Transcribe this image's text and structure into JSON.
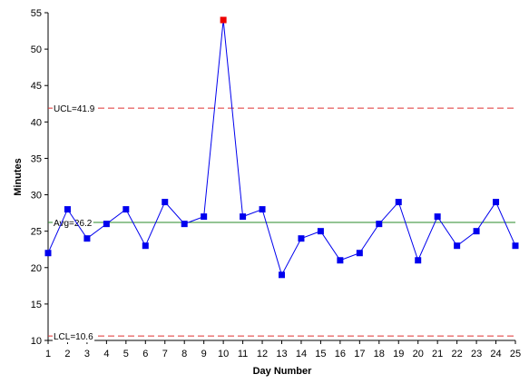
{
  "chart_data": {
    "type": "line",
    "title": "",
    "xlabel": "Day Number",
    "ylabel": "Minutes",
    "x": [
      1,
      2,
      3,
      4,
      5,
      6,
      7,
      8,
      9,
      10,
      11,
      12,
      13,
      14,
      15,
      16,
      17,
      18,
      19,
      20,
      21,
      22,
      23,
      24,
      25
    ],
    "series": [
      {
        "values": [
          22,
          28,
          24,
          26,
          28,
          23,
          29,
          26,
          27,
          54,
          27,
          28,
          19,
          24,
          25,
          21,
          22,
          26,
          29,
          21,
          27,
          23,
          25,
          29,
          23
        ]
      }
    ],
    "xlim": [
      1,
      25
    ],
    "ylim": [
      10,
      55
    ],
    "yticks": [
      10,
      15,
      20,
      25,
      30,
      35,
      40,
      45,
      50,
      55
    ],
    "xticks": [
      1,
      2,
      3,
      4,
      5,
      6,
      7,
      8,
      9,
      10,
      11,
      12,
      13,
      14,
      15,
      16,
      17,
      18,
      19,
      20,
      21,
      22,
      23,
      24,
      25
    ],
    "reference_lines": [
      {
        "label": "UCL=41.9",
        "value": 41.9,
        "style": "dashed",
        "color": "#e03030"
      },
      {
        "label": "Avg=26.2",
        "value": 26.2,
        "style": "solid",
        "color": "#2a8a2a"
      },
      {
        "label": "LCL=10.6",
        "value": 10.6,
        "style": "dashed",
        "color": "#e03030"
      }
    ],
    "out_of_control_points": [
      10
    ],
    "colors": {
      "series": "#0000ee",
      "out_of_control": "#ee0000"
    },
    "grid": false,
    "legend": "none"
  }
}
